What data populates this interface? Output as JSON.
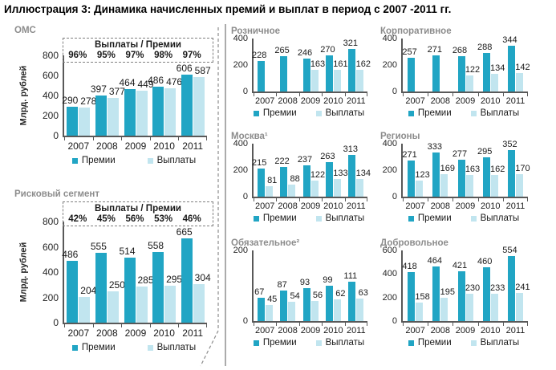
{
  "page_title": "Иллюстрация 3: Динамика начисленных премий и выплат в период с 2007 -2011 гг.",
  "colors": {
    "premium": "#21A5C4",
    "payout": "#C1E5EF",
    "axis": "#595959",
    "chart_title": "#8C8C8C",
    "dashed_border": "#7F7F7F"
  },
  "chart_data": [
    {
      "id": "oms",
      "title": "ОМС",
      "type": "bar",
      "ylabel": "Млрд. рублей",
      "categories": [
        "2007",
        "2008",
        "2009",
        "2010",
        "2011"
      ],
      "series": [
        {
          "name": "Премии",
          "values": [
            290,
            397,
            464,
            486,
            606
          ]
        },
        {
          "name": "Выплаты",
          "values": [
            278,
            377,
            449,
            476,
            587
          ]
        }
      ],
      "ratio_box": {
        "label": "Выплаты / Премии",
        "values": [
          "96%",
          "95%",
          "97%",
          "98%",
          "97%"
        ]
      },
      "ylim": [
        0,
        800
      ],
      "yticks": [
        800,
        600,
        400,
        200,
        0
      ]
    },
    {
      "id": "risk-segment",
      "title": "Рисковый сегмент",
      "type": "bar",
      "ylabel": "Млрд. рублей",
      "categories": [
        "2007",
        "2008",
        "2009",
        "2010",
        "2011"
      ],
      "series": [
        {
          "name": "Премии",
          "values": [
            486,
            555,
            514,
            558,
            665
          ]
        },
        {
          "name": "Выплаты",
          "values": [
            204,
            250,
            285,
            295,
            304
          ]
        }
      ],
      "ratio_box": {
        "label": "Выплаты / Премии",
        "values": [
          "42%",
          "45%",
          "56%",
          "53%",
          "46%"
        ]
      },
      "ylim": [
        0,
        800
      ],
      "yticks": [
        800,
        600,
        400,
        200,
        0
      ]
    },
    {
      "id": "retail",
      "title": "Розничное",
      "type": "bar",
      "categories": [
        "2007",
        "2008",
        "2009",
        "2010",
        "2011"
      ],
      "series": [
        {
          "name": "Премии",
          "values": [
            228,
            265,
            246,
            270,
            321
          ]
        },
        {
          "name": "Выплаты",
          "values": [
            null,
            null,
            163,
            161,
            162
          ]
        }
      ],
      "ylim": [
        0,
        400
      ],
      "yticks": [
        400,
        200,
        0
      ]
    },
    {
      "id": "corporate",
      "title": "Корпоративное",
      "type": "bar",
      "categories": [
        "2007",
        "2008",
        "2009",
        "2010",
        "2011"
      ],
      "series": [
        {
          "name": "Премии",
          "values": [
            257,
            271,
            268,
            288,
            344
          ]
        },
        {
          "name": "Выплаты",
          "values": [
            null,
            null,
            122,
            134,
            142
          ]
        }
      ],
      "ylim": [
        0,
        400
      ],
      "yticks": [
        400,
        200,
        0
      ]
    },
    {
      "id": "moscow",
      "title": "Москва¹",
      "type": "bar",
      "categories": [
        "2007",
        "2008",
        "2009",
        "2010",
        "2011"
      ],
      "series": [
        {
          "name": "Премии",
          "values": [
            215,
            222,
            237,
            263,
            313
          ]
        },
        {
          "name": "Выплаты",
          "values": [
            81,
            88,
            122,
            133,
            134
          ]
        }
      ],
      "ylim": [
        0,
        400
      ],
      "yticks": [
        400,
        200,
        0
      ]
    },
    {
      "id": "regions",
      "title": "Регионы",
      "type": "bar",
      "categories": [
        "2007",
        "2008",
        "2009",
        "2010",
        "2011"
      ],
      "series": [
        {
          "name": "Премии",
          "values": [
            271,
            333,
            277,
            295,
            352
          ]
        },
        {
          "name": "Выплаты",
          "values": [
            123,
            169,
            163,
            162,
            170
          ]
        }
      ],
      "ylim": [
        0,
        400
      ],
      "yticks": [
        400,
        200,
        0
      ]
    },
    {
      "id": "mandatory",
      "title": "Обязательное²",
      "type": "bar",
      "categories": [
        "2007",
        "2008",
        "2009",
        "2010",
        "2011"
      ],
      "series": [
        {
          "name": "Премии",
          "values": [
            67,
            87,
            93,
            99,
            111
          ]
        },
        {
          "name": "Выплаты",
          "values": [
            45,
            54,
            56,
            62,
            63
          ]
        }
      ],
      "ylim": [
        0,
        200
      ],
      "yticks": [
        200,
        0
      ]
    },
    {
      "id": "voluntary",
      "title": "Добровольное",
      "type": "bar",
      "categories": [
        "2007",
        "2008",
        "2009",
        "2010",
        "2011"
      ],
      "series": [
        {
          "name": "Премии",
          "values": [
            418,
            464,
            421,
            460,
            554
          ]
        },
        {
          "name": "Выплаты",
          "values": [
            158,
            195,
            230,
            233,
            241
          ]
        }
      ],
      "ylim": [
        0,
        600
      ],
      "yticks": [
        600,
        400,
        200,
        0
      ]
    }
  ]
}
